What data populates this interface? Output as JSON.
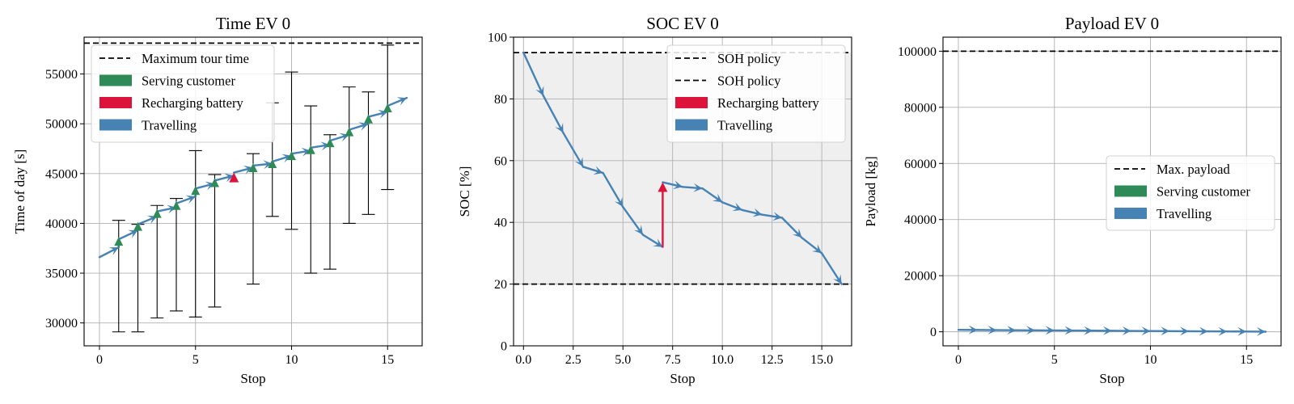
{
  "colors": {
    "travel": "#4682b4",
    "serve": "#2e8b57",
    "recharge": "#dc143c",
    "grid": "#b0b0b0",
    "soc_band": "#efefef",
    "limit": "#000000"
  },
  "chart_data": [
    {
      "type": "line",
      "title": "Time EV 0",
      "xlabel": "Stop",
      "ylabel": "Time of day [s]",
      "xlim": [
        -0.8,
        16.8
      ],
      "ylim": [
        27700,
        58700
      ],
      "xticks": [
        0,
        5,
        10,
        15
      ],
      "yticks": [
        30000,
        35000,
        40000,
        45000,
        50000,
        55000
      ],
      "xtick_labels": [
        "0",
        "5",
        "10",
        "15"
      ],
      "ytick_labels": [
        "30000",
        "35000",
        "40000",
        "45000",
        "50000",
        "55000"
      ],
      "grid": true,
      "legend_position": "upper-left",
      "legend": [
        {
          "label": "Maximum tour time",
          "kind": "dashed"
        },
        {
          "label": "Serving customer",
          "kind": "patch",
          "color": "serve"
        },
        {
          "label": "Recharging battery",
          "kind": "patch",
          "color": "recharge"
        },
        {
          "label": "Travelling",
          "kind": "patch",
          "color": "travel"
        }
      ],
      "limit_lines": [
        58100
      ],
      "travel_path": [
        [
          0,
          36600
        ],
        [
          1,
          37600
        ],
        [
          1,
          38400
        ],
        [
          2,
          39300
        ],
        [
          2,
          39900
        ],
        [
          3,
          40700
        ],
        [
          3,
          41200
        ],
        [
          4,
          41600
        ],
        [
          4,
          42000
        ],
        [
          5,
          42700
        ],
        [
          5,
          43500
        ],
        [
          6,
          44000
        ],
        [
          6,
          44300
        ],
        [
          7,
          44800
        ],
        [
          7,
          45100
        ],
        [
          8,
          45600
        ],
        [
          8,
          45800
        ],
        [
          9,
          46000
        ],
        [
          9,
          46200
        ],
        [
          10,
          46800
        ],
        [
          10,
          47000
        ],
        [
          11,
          47300
        ],
        [
          11,
          47600
        ],
        [
          12,
          47900
        ],
        [
          12,
          48300
        ],
        [
          13,
          48900
        ],
        [
          13,
          49400
        ],
        [
          14,
          50000
        ],
        [
          14,
          50700
        ],
        [
          15,
          51200
        ],
        [
          15,
          51800
        ],
        [
          16,
          52600
        ]
      ],
      "serve_segments": [
        [
          1,
          37600,
          38400
        ],
        [
          2,
          39300,
          39900
        ],
        [
          3,
          40700,
          41200
        ],
        [
          4,
          41600,
          42000
        ],
        [
          5,
          42700,
          43500
        ],
        [
          6,
          44000,
          44300
        ],
        [
          8,
          45600,
          45800
        ],
        [
          9,
          46000,
          46200
        ],
        [
          10,
          46800,
          47000
        ],
        [
          11,
          47300,
          47600
        ],
        [
          12,
          47900,
          48300
        ],
        [
          13,
          48900,
          49400
        ],
        [
          14,
          50000,
          50700
        ],
        [
          15,
          51200,
          51800
        ]
      ],
      "recharge_segments": [
        [
          7,
          44800,
          45100
        ]
      ],
      "time_windows": [
        [
          1,
          29100,
          40300
        ],
        [
          2,
          29100,
          39900
        ],
        [
          3,
          30500,
          41800
        ],
        [
          4,
          31200,
          42500
        ],
        [
          5,
          30600,
          47300
        ],
        [
          6,
          31600,
          44900
        ],
        [
          8,
          33900,
          47000
        ],
        [
          9,
          40700,
          52100
        ],
        [
          10,
          39400,
          55200
        ],
        [
          11,
          35000,
          51800
        ],
        [
          12,
          35400,
          48900
        ],
        [
          13,
          40000,
          53700
        ],
        [
          14,
          40900,
          53200
        ],
        [
          15,
          43400,
          57900
        ]
      ]
    },
    {
      "type": "line",
      "title": "SOC EV 0",
      "xlabel": "Stop",
      "ylabel": "SOC [%]",
      "xlim": [
        -0.5,
        16.5
      ],
      "ylim": [
        0,
        100
      ],
      "xticks": [
        0,
        2.5,
        5,
        7.5,
        10,
        12.5,
        15
      ],
      "yticks": [
        0,
        20,
        40,
        60,
        80,
        100
      ],
      "xtick_labels": [
        "0.0",
        "2.5",
        "5.0",
        "7.5",
        "10.0",
        "12.5",
        "15.0"
      ],
      "ytick_labels": [
        "0",
        "20",
        "40",
        "60",
        "80",
        "100"
      ],
      "grid": true,
      "legend_position": "upper-right",
      "legend": [
        {
          "label": "SOH policy",
          "kind": "dashed"
        },
        {
          "label": "SOH policy",
          "kind": "dashed"
        },
        {
          "label": "Recharging battery",
          "kind": "patch",
          "color": "recharge"
        },
        {
          "label": "Travelling",
          "kind": "patch",
          "color": "travel"
        }
      ],
      "limit_lines": [
        95,
        20
      ],
      "band": [
        20,
        95
      ],
      "travel_path": [
        [
          0,
          95
        ],
        [
          1,
          81
        ],
        [
          2,
          69
        ],
        [
          3,
          58
        ],
        [
          4,
          56
        ],
        [
          5,
          45
        ],
        [
          6,
          36
        ],
        [
          7,
          32
        ],
        [
          7,
          53
        ],
        [
          8,
          51.5
        ],
        [
          9,
          51
        ],
        [
          10,
          46.5
        ],
        [
          11,
          44
        ],
        [
          12,
          42.5
        ],
        [
          13,
          41.5
        ],
        [
          14,
          35
        ],
        [
          15,
          30
        ],
        [
          16,
          20
        ]
      ],
      "recharge_segments": [
        [
          7,
          32,
          53
        ]
      ]
    },
    {
      "type": "line",
      "title": "Payload EV 0",
      "xlabel": "Stop",
      "ylabel": "Payload [kg]",
      "xlim": [
        -0.8,
        16.8
      ],
      "ylim": [
        -5000,
        105000
      ],
      "xticks": [
        0,
        5,
        10,
        15
      ],
      "yticks": [
        0,
        20000,
        40000,
        60000,
        80000,
        100000
      ],
      "xtick_labels": [
        "0",
        "5",
        "10",
        "15"
      ],
      "ytick_labels": [
        "0",
        "20000",
        "40000",
        "60000",
        "80000",
        "100000"
      ],
      "grid": true,
      "legend_position": "center-right",
      "legend": [
        {
          "label": "Max. payload",
          "kind": "dashed"
        },
        {
          "label": "Serving customer",
          "kind": "patch",
          "color": "serve"
        },
        {
          "label": "Travelling",
          "kind": "patch",
          "color": "travel"
        }
      ],
      "limit_lines": [
        100000
      ],
      "travel_path": [
        [
          0,
          700
        ],
        [
          1,
          650
        ],
        [
          2,
          600
        ],
        [
          3,
          560
        ],
        [
          4,
          520
        ],
        [
          5,
          480
        ],
        [
          6,
          440
        ],
        [
          7,
          400
        ],
        [
          8,
          360
        ],
        [
          9,
          320
        ],
        [
          10,
          280
        ],
        [
          11,
          240
        ],
        [
          12,
          200
        ],
        [
          13,
          160
        ],
        [
          14,
          120
        ],
        [
          15,
          80
        ],
        [
          16,
          40
        ]
      ]
    }
  ]
}
